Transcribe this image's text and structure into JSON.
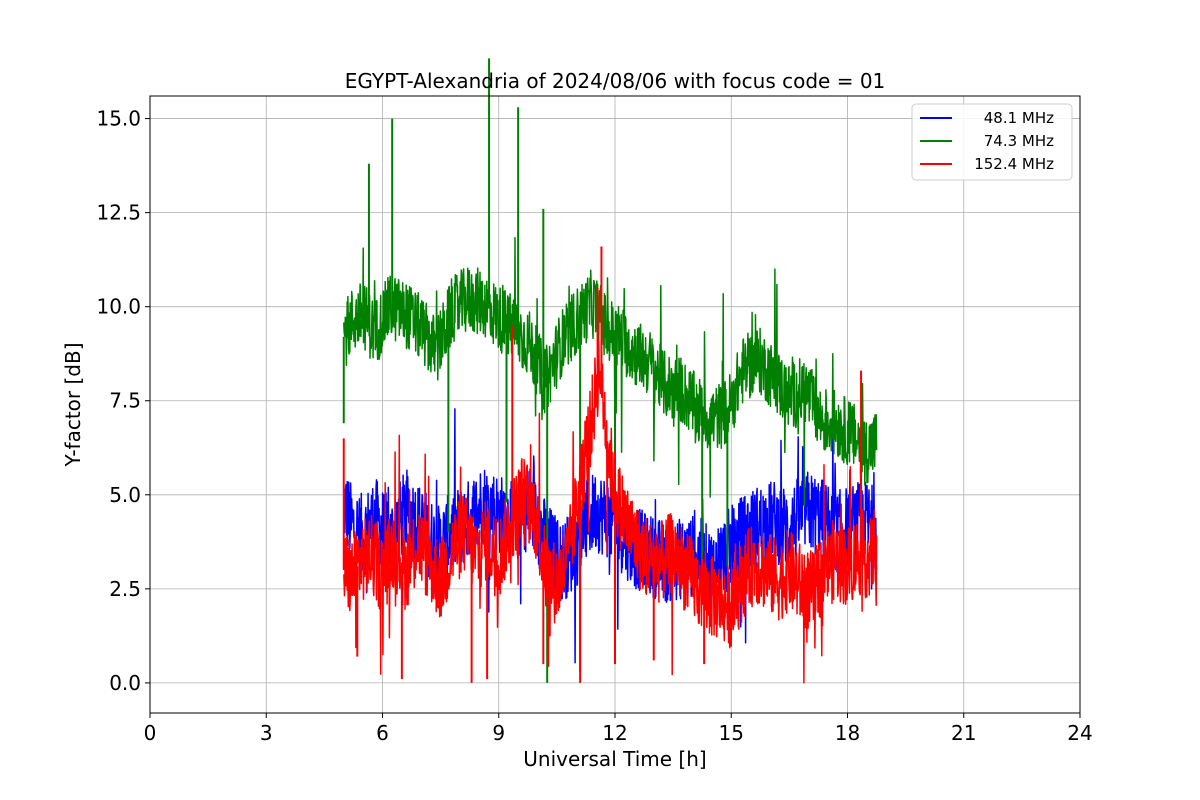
{
  "chart_data": {
    "type": "line",
    "title": "EGYPT-Alexandria of 2024/08/06 with focus code = 01",
    "xlabel": "Universal Time [h]",
    "ylabel": "Y-factor [dB]",
    "xlim": [
      0,
      24
    ],
    "ylim": [
      -0.8,
      15.6
    ],
    "xticks": [
      0,
      3,
      6,
      9,
      12,
      15,
      18,
      21,
      24
    ],
    "xtick_labels": [
      "0",
      "3",
      "6",
      "9",
      "12",
      "15",
      "18",
      "21",
      "24"
    ],
    "yticks": [
      0.0,
      2.5,
      5.0,
      7.5,
      10.0,
      12.5,
      15.0
    ],
    "ytick_labels": [
      "0.0",
      "2.5",
      "5.0",
      "7.5",
      "10.0",
      "12.5",
      "15.0"
    ],
    "grid": true,
    "legend_position": "top-right",
    "series": [
      {
        "name": "48.1 MHz",
        "color": "#0000ff",
        "x": [
          5.0,
          5.2,
          5.5,
          5.8,
          6.2,
          6.6,
          7.0,
          7.4,
          7.8,
          8.2,
          8.6,
          9.0,
          9.4,
          9.8,
          10.2,
          10.6,
          11.0,
          11.2,
          11.5,
          11.8,
          12.1,
          12.5,
          12.9,
          13.3,
          13.7,
          14.1,
          14.5,
          14.9,
          15.3,
          15.7,
          16.1,
          16.5,
          16.9,
          17.3,
          17.7,
          18.1,
          18.5,
          18.75
        ],
        "y": [
          4.8,
          4.2,
          3.9,
          4.4,
          3.8,
          4.6,
          4.2,
          3.6,
          4.0,
          4.3,
          4.8,
          4.5,
          4.2,
          4.7,
          3.8,
          3.2,
          3.6,
          4.2,
          4.6,
          4.4,
          4.1,
          3.6,
          3.4,
          3.2,
          3.3,
          3.4,
          3.0,
          3.5,
          3.9,
          4.2,
          4.3,
          4.1,
          4.6,
          4.4,
          4.0,
          4.2,
          4.3,
          4.1
        ]
      },
      {
        "name": "74.3 MHz",
        "color": "#008000",
        "x": [
          5.0,
          5.2,
          5.5,
          5.8,
          6.2,
          6.6,
          7.0,
          7.4,
          7.8,
          8.2,
          8.6,
          9.0,
          9.4,
          9.8,
          10.2,
          10.6,
          11.0,
          11.4,
          11.8,
          12.1,
          12.5,
          12.9,
          13.3,
          13.7,
          14.1,
          14.5,
          14.9,
          15.3,
          15.7,
          16.1,
          16.5,
          16.9,
          17.3,
          17.7,
          18.1,
          18.5,
          18.75
        ],
        "y": [
          9.2,
          9.6,
          9.8,
          9.3,
          10.0,
          9.8,
          9.4,
          8.8,
          9.9,
          10.2,
          10.1,
          9.7,
          9.4,
          9.0,
          8.0,
          9.0,
          9.6,
          10.1,
          9.4,
          9.2,
          8.8,
          8.5,
          7.9,
          7.8,
          7.3,
          7.0,
          7.2,
          8.3,
          8.6,
          8.1,
          7.6,
          7.8,
          7.0,
          6.9,
          6.6,
          6.2,
          6.4
        ],
        "spikes": [
          [
            5.0,
            6.9
          ],
          [
            5.65,
            13.8
          ],
          [
            6.25,
            15.0
          ],
          [
            7.7,
            4.0
          ],
          [
            8.75,
            16.6
          ],
          [
            9.2,
            4.8
          ],
          [
            9.5,
            15.3
          ],
          [
            10.15,
            12.6
          ],
          [
            10.25,
            0.0
          ],
          [
            11.1,
            0.3
          ],
          [
            12.0,
            3.6
          ],
          [
            14.25,
            3.0
          ],
          [
            14.9,
            3.1
          ]
        ]
      },
      {
        "name": "152.4 MHz",
        "color": "#ff0000",
        "x": [
          5.0,
          5.2,
          5.4,
          5.7,
          6.0,
          6.3,
          6.6,
          6.9,
          7.2,
          7.5,
          7.8,
          8.1,
          8.4,
          8.7,
          9.0,
          9.3,
          9.6,
          9.9,
          10.2,
          10.5,
          10.8,
          11.1,
          11.4,
          11.6,
          11.8,
          12.0,
          12.3,
          12.6,
          12.9,
          13.2,
          13.5,
          13.8,
          14.1,
          14.4,
          14.7,
          15.0,
          15.3,
          15.6,
          15.9,
          16.2,
          16.5,
          16.8,
          17.1,
          17.4,
          17.7,
          18.0,
          18.3,
          18.6,
          18.75
        ],
        "y": [
          3.0,
          2.8,
          3.2,
          3.4,
          2.9,
          3.6,
          3.0,
          3.8,
          3.2,
          2.7,
          3.5,
          4.0,
          3.4,
          3.8,
          3.3,
          4.2,
          5.0,
          4.6,
          3.0,
          2.6,
          3.4,
          5.2,
          7.0,
          8.5,
          6.5,
          5.0,
          4.3,
          3.6,
          3.3,
          3.2,
          3.5,
          3.0,
          2.6,
          2.3,
          2.2,
          2.0,
          2.8,
          3.2,
          3.0,
          2.7,
          3.0,
          2.6,
          2.4,
          3.0,
          3.3,
          3.1,
          3.4,
          3.3,
          3.8
        ],
        "spikes": [
          [
            5.0,
            6.5
          ],
          [
            5.35,
            0.7
          ],
          [
            6.5,
            0.1
          ],
          [
            8.3,
            0.0
          ],
          [
            8.7,
            0.1
          ],
          [
            9.35,
            9.5
          ],
          [
            10.15,
            0.5
          ],
          [
            11.1,
            0.0
          ],
          [
            11.55,
            10.5
          ],
          [
            11.65,
            11.6
          ],
          [
            12.0,
            0.5
          ],
          [
            13.0,
            0.6
          ],
          [
            14.3,
            0.5
          ],
          [
            18.35,
            8.3
          ]
        ]
      }
    ]
  }
}
